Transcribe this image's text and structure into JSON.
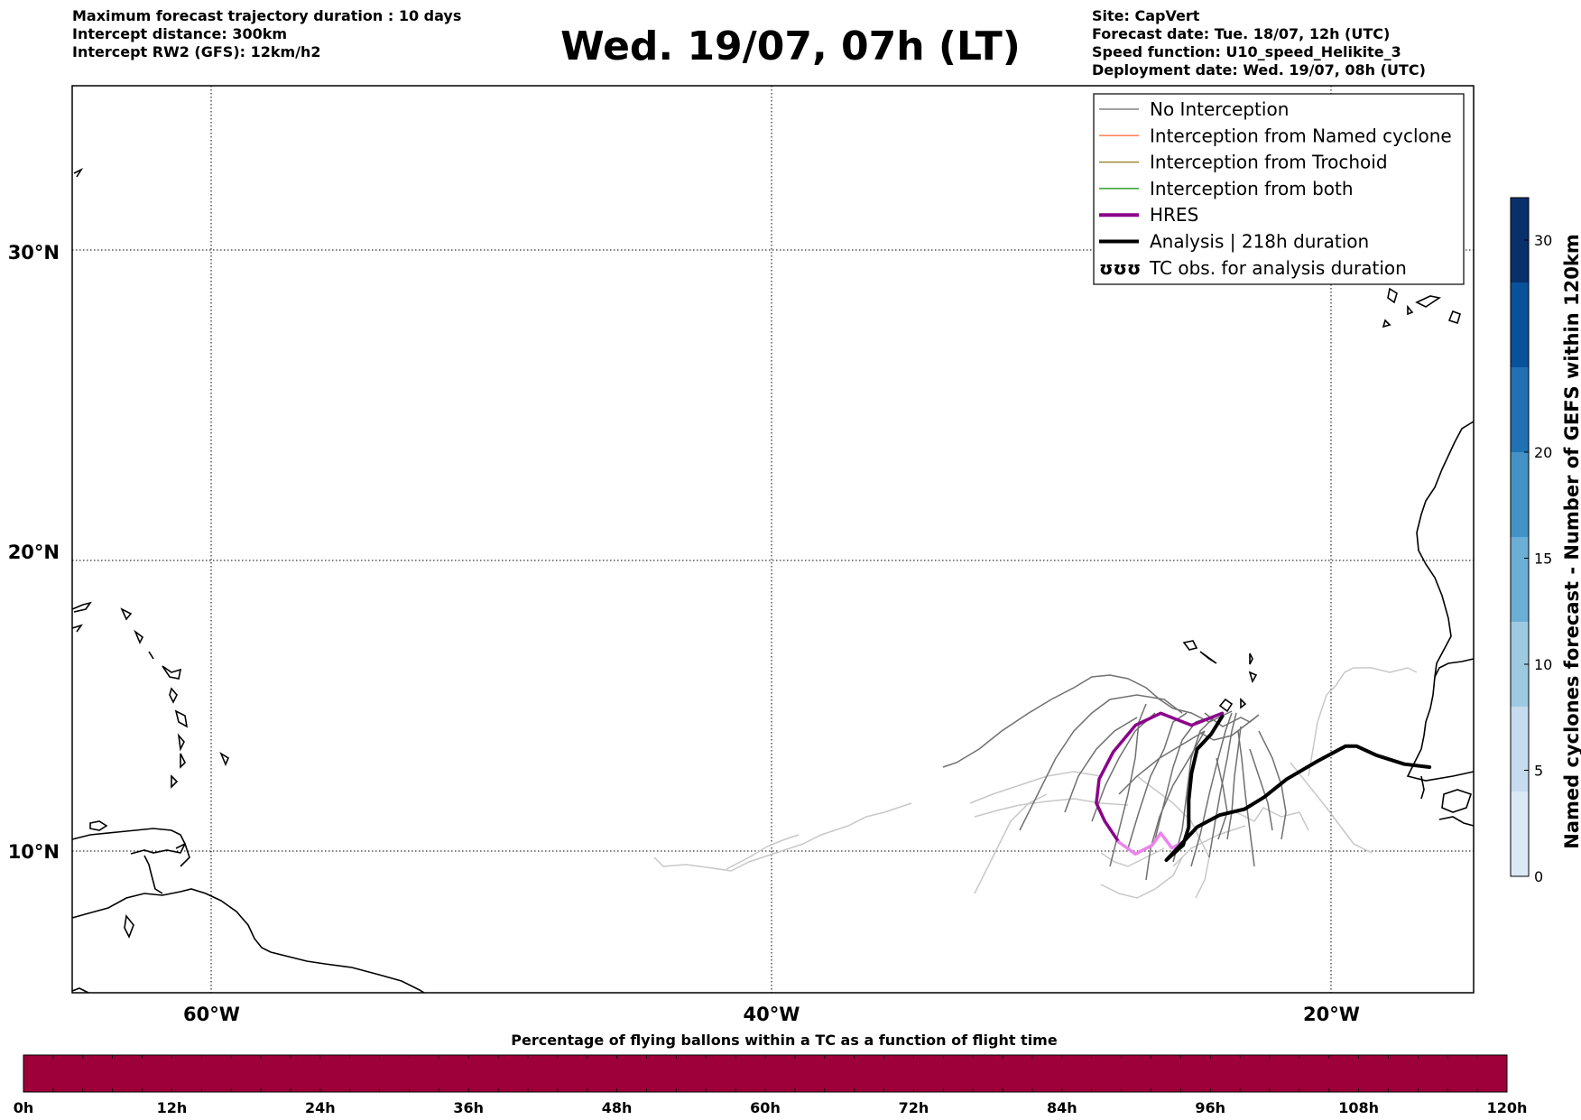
{
  "header_left": [
    "Maximum forecast trajectory duration : 10 days",
    "Intercept distance: 300km",
    "Intercept RW2 (GFS):  12km/h2"
  ],
  "header_right": [
    "Site: CapVert",
    "Forecast date: Tue. 18/07, 12h (UTC)",
    "Speed function: U10_speed_Helikite_3",
    "Deployment date: Wed. 19/07, 08h (UTC)"
  ],
  "title": "Wed. 19/07, 07h (LT)",
  "map": {
    "lon_range": [
      -65,
      15
    ],
    "lat_range": [
      5,
      34
    ],
    "lat_ticks": [
      {
        "value": 10,
        "label": "10°N"
      },
      {
        "value": 20,
        "label": "20°N"
      },
      {
        "value": 30,
        "label": "30°N"
      }
    ],
    "lon_ticks": [
      {
        "value": -60,
        "label": "60°W"
      },
      {
        "value": -40,
        "label": "40°W"
      },
      {
        "value": -20,
        "label": "20°W"
      }
    ],
    "grid": "dotted"
  },
  "legend": {
    "placement": "top-right",
    "entries": [
      {
        "label": "No Interception",
        "color": "#808080",
        "style": "thin"
      },
      {
        "label": "Interception from Named cyclone",
        "color": "#ff7f50",
        "style": "thin"
      },
      {
        "label": "Interception from Trochoid",
        "color": "#9a8a30",
        "style": "thin"
      },
      {
        "label": "Interception from both",
        "color": "#2ca02c",
        "style": "thin"
      },
      {
        "label": "HRES",
        "color": "#8b008b",
        "style": "thick"
      },
      {
        "label": "Analysis | 218h duration",
        "color": "#000000",
        "style": "thick"
      },
      {
        "label": "TC obs. for analysis duration",
        "color": "#000000",
        "style": "symbol"
      }
    ],
    "symbol_glyph": "ʊʊʊ"
  },
  "colorbar_right": {
    "label": "Named cyclones forecast - Number of GEFS within 120km",
    "ticks": [
      0,
      5,
      10,
      15,
      20,
      30
    ],
    "range": [
      0,
      32
    ],
    "colors": [
      "#dbe9f6",
      "#c6dbef",
      "#9ecae1",
      "#6baed6",
      "#4292c6",
      "#2171b5",
      "#08519c",
      "#08306b"
    ]
  },
  "colorbar_bottom": {
    "title": "Percentage of flying ballons within a TC as a function of flight time",
    "ticks": [
      "0h",
      "12h",
      "24h",
      "36h",
      "48h",
      "60h",
      "72h",
      "84h",
      "96h",
      "108h",
      "120h"
    ],
    "fill_color": "#9e003a"
  },
  "chart_data": {
    "type": "line",
    "title": "Wed. 19/07, 07h (LT)",
    "x_axis": "longitude",
    "y_axis": "latitude",
    "series": [
      {
        "name": "HRES",
        "color": "#8b008b",
        "points": [
          [
            -23.9,
            14.6
          ],
          [
            -25.0,
            14.2
          ],
          [
            -26.1,
            14.6
          ],
          [
            -27.0,
            14.2
          ],
          [
            -27.8,
            13.3
          ],
          [
            -28.3,
            12.4
          ],
          [
            -28.4,
            11.6
          ],
          [
            -28.1,
            11.0
          ],
          [
            -27.6,
            10.3
          ]
        ]
      },
      {
        "name": "HRES (late)",
        "color": "#ee82ee",
        "points": [
          [
            -27.6,
            10.3
          ],
          [
            -27.0,
            9.9
          ],
          [
            -26.4,
            10.2
          ],
          [
            -26.1,
            10.6
          ],
          [
            -25.7,
            10.1
          ],
          [
            -25.3,
            10.3
          ]
        ]
      },
      {
        "name": "Analysis | 218h duration",
        "color": "#000000",
        "points": [
          [
            -16.5,
            12.8
          ],
          [
            -17.4,
            12.9
          ],
          [
            -18.4,
            13.2
          ],
          [
            -19.1,
            13.5
          ],
          [
            -19.5,
            13.5
          ],
          [
            -20.5,
            13.0
          ],
          [
            -21.6,
            12.4
          ],
          [
            -22.4,
            11.8
          ],
          [
            -23.1,
            11.4
          ],
          [
            -24.0,
            11.2
          ],
          [
            -24.8,
            10.8
          ],
          [
            -25.5,
            10.1
          ],
          [
            -25.9,
            9.7
          ],
          [
            -25.3,
            10.2
          ],
          [
            -25.1,
            10.8
          ],
          [
            -25.1,
            11.7
          ],
          [
            -25.0,
            12.6
          ],
          [
            -24.8,
            13.4
          ],
          [
            -24.3,
            13.9
          ],
          [
            -23.9,
            14.5
          ]
        ]
      }
    ]
  }
}
